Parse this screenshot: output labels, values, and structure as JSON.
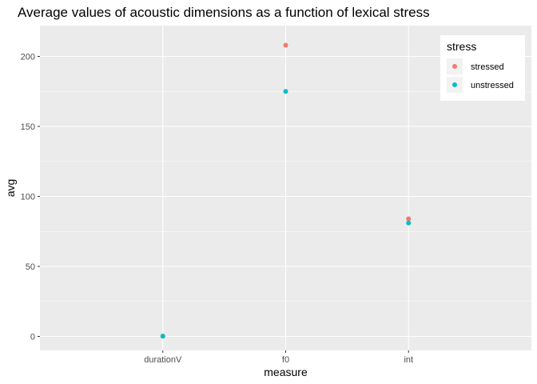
{
  "chart_data": {
    "type": "scatter",
    "title": "Average values of acoustic dimensions as a function of lexical stress",
    "xlabel": "measure",
    "ylabel": "avg",
    "categories": [
      "durationV",
      "f0",
      "int"
    ],
    "ylim": [
      -10,
      222
    ],
    "yticks": [
      0,
      50,
      100,
      150,
      200
    ],
    "grid": true,
    "legend": {
      "title": "stress",
      "position": "top-right"
    },
    "series": [
      {
        "name": "stressed",
        "color": "#F8766D",
        "values": [
          0.2,
          208,
          84
        ]
      },
      {
        "name": "unstressed",
        "color": "#00BFC4",
        "values": [
          0.15,
          175,
          81
        ]
      }
    ]
  }
}
